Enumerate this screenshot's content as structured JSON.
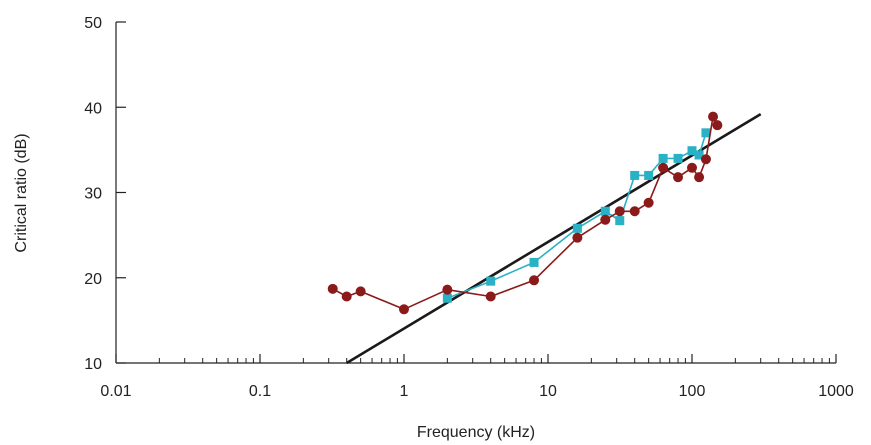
{
  "chart_data": {
    "type": "line",
    "title": "",
    "xlabel": "Frequency (kHz)",
    "ylabel": "Critical ratio (dB)",
    "x_scale": "log",
    "xlim": [
      0.01,
      1000
    ],
    "ylim": [
      10,
      50
    ],
    "x_ticks": [
      {
        "value": 0.01,
        "label": "0.01"
      },
      {
        "value": 0.1,
        "label": "0.1"
      },
      {
        "value": 1,
        "label": "1"
      },
      {
        "value": 10,
        "label": "10"
      },
      {
        "value": 100,
        "label": "100"
      },
      {
        "value": 1000,
        "label": "1000"
      }
    ],
    "y_ticks": [
      {
        "value": 10,
        "label": "10"
      },
      {
        "value": 20,
        "label": "20"
      },
      {
        "value": 30,
        "label": "30"
      },
      {
        "value": 40,
        "label": "40"
      },
      {
        "value": 50,
        "label": "50"
      }
    ],
    "grid": false,
    "legend": "none",
    "series": [
      {
        "marker": "circle",
        "color": "#8b1a1a",
        "points": [
          [
            0.32,
            18.7
          ],
          [
            0.4,
            17.8
          ],
          [
            0.5,
            18.4
          ],
          [
            1.0,
            16.3
          ],
          [
            2.0,
            18.6
          ],
          [
            4.0,
            17.8
          ],
          [
            8.0,
            19.7
          ],
          [
            16.0,
            24.7
          ],
          [
            25.0,
            26.8
          ],
          [
            31.5,
            27.8
          ],
          [
            40.0,
            27.8
          ],
          [
            50.0,
            28.8
          ],
          [
            63.0,
            32.9
          ],
          [
            80.0,
            31.8
          ],
          [
            100.0,
            32.9
          ],
          [
            112.0,
            31.8
          ],
          [
            125.0,
            33.9
          ],
          [
            140.0,
            38.9
          ],
          [
            150.0,
            37.9
          ]
        ]
      },
      {
        "marker": "square",
        "color": "#29b1c5",
        "points": [
          [
            2.0,
            17.6
          ],
          [
            4.0,
            19.6
          ],
          [
            8.0,
            21.8
          ],
          [
            16.0,
            25.8
          ],
          [
            25.0,
            27.8
          ],
          [
            31.5,
            26.7
          ],
          [
            40.0,
            32.0
          ],
          [
            50.0,
            32.0
          ],
          [
            63.0,
            34.0
          ],
          [
            80.0,
            34.0
          ],
          [
            100.0,
            34.9
          ],
          [
            112.0,
            34.4
          ],
          [
            125.0,
            37.0
          ]
        ]
      },
      {
        "marker": "none",
        "color": "#1a1a1a",
        "points": [
          [
            0.4,
            10.0
          ],
          [
            300.0,
            39.2
          ]
        ]
      }
    ]
  }
}
